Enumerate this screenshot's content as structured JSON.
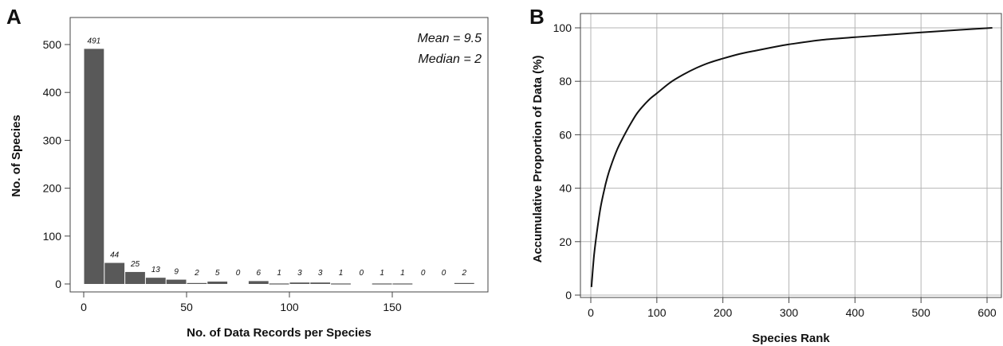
{
  "chart_data": [
    {
      "panel": "A",
      "type": "bar",
      "xlabel": "No. of Data Records per Species",
      "ylabel": "No. of Species",
      "xlim": [
        -5,
        190
      ],
      "ylim": [
        0,
        530
      ],
      "xticks": [
        "0",
        "50",
        "100",
        "150"
      ],
      "yticks": [
        "0",
        "100",
        "200",
        "300",
        "400",
        "500"
      ],
      "bin_width": 10,
      "bins": [
        {
          "start": 0,
          "value": 491,
          "label": "491"
        },
        {
          "start": 10,
          "value": 44,
          "label": "44"
        },
        {
          "start": 20,
          "value": 25,
          "label": "25"
        },
        {
          "start": 30,
          "value": 13,
          "label": "13"
        },
        {
          "start": 40,
          "value": 9,
          "label": "9"
        },
        {
          "start": 50,
          "value": 2,
          "label": "2"
        },
        {
          "start": 60,
          "value": 5,
          "label": "5"
        },
        {
          "start": 70,
          "value": 0,
          "label": "0"
        },
        {
          "start": 80,
          "value": 6,
          "label": "6"
        },
        {
          "start": 90,
          "value": 1,
          "label": "1"
        },
        {
          "start": 100,
          "value": 3,
          "label": "3"
        },
        {
          "start": 110,
          "value": 3,
          "label": "3"
        },
        {
          "start": 120,
          "value": 1,
          "label": "1"
        },
        {
          "start": 130,
          "value": 0,
          "label": "0"
        },
        {
          "start": 140,
          "value": 1,
          "label": "1"
        },
        {
          "start": 150,
          "value": 1,
          "label": "1"
        },
        {
          "start": 160,
          "value": 0,
          "label": "0"
        },
        {
          "start": 170,
          "value": 0,
          "label": "0"
        },
        {
          "start": 180,
          "value": 2,
          "label": "2"
        }
      ],
      "annotations": [
        "Mean = 9.5",
        "Median = 2"
      ],
      "bar_color": "#595959",
      "grid": false
    },
    {
      "panel": "B",
      "type": "line",
      "xlabel": "Species Rank",
      "ylabel": "Accumulative Proportion of Data (%)",
      "xlim": [
        -15,
        625
      ],
      "ylim": [
        0,
        104
      ],
      "xticks": [
        "0",
        "100",
        "200",
        "300",
        "400",
        "500",
        "600"
      ],
      "yticks": [
        "0",
        "20",
        "40",
        "60",
        "80",
        "100"
      ],
      "grid": true,
      "line_color": "#111111",
      "x": [
        1,
        5,
        10,
        15,
        20,
        25,
        30,
        40,
        50,
        60,
        70,
        80,
        90,
        100,
        120,
        140,
        160,
        180,
        200,
        225,
        250,
        275,
        300,
        350,
        400,
        450,
        500,
        550,
        608
      ],
      "y": [
        3,
        15,
        25,
        33,
        39,
        44,
        48,
        54.5,
        59.5,
        64,
        68,
        71,
        73.5,
        75.5,
        79.5,
        82.5,
        85,
        87,
        88.5,
        90.2,
        91.5,
        92.7,
        93.8,
        95.5,
        96.5,
        97.4,
        98.3,
        99.1,
        100
      ]
    }
  ]
}
